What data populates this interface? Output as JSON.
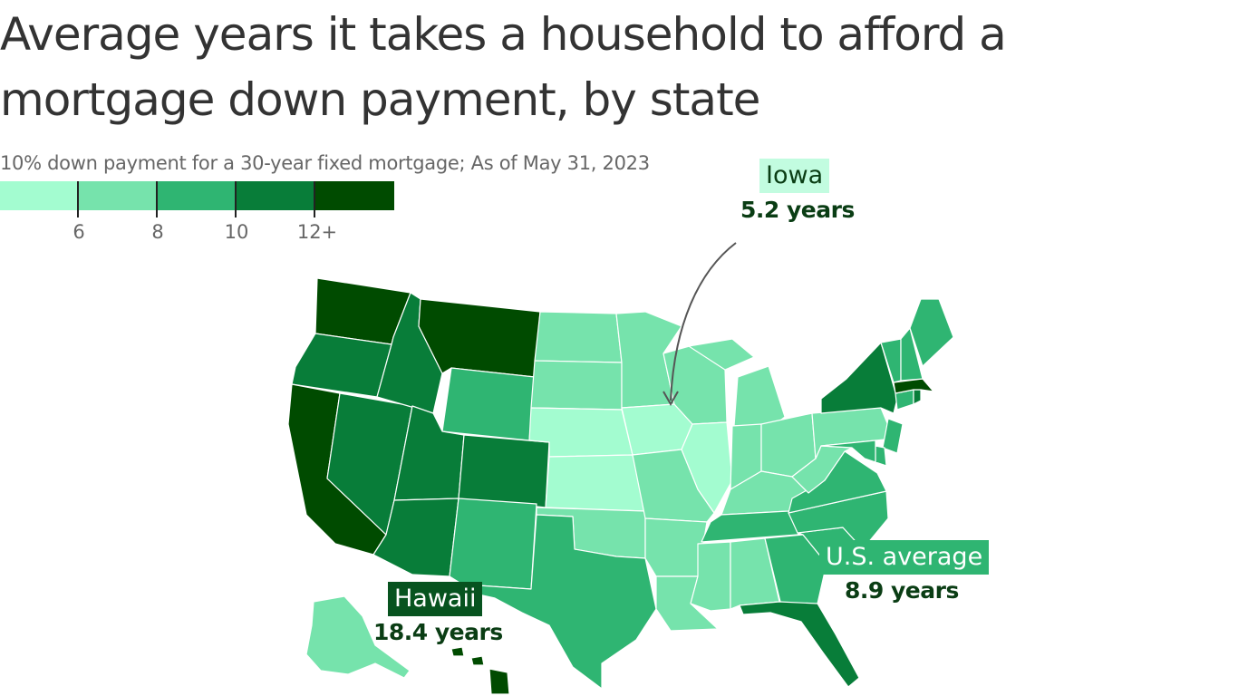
{
  "title": "Average years it takes a household to afford a mortgage down payment, by state",
  "subtitle": "10% down payment for a 30-year fixed mortgage; As of May 31, 2023",
  "legend": {
    "colors": [
      "#a3fcd0",
      "#76e3ac",
      "#2fb572",
      "#087d39",
      "#004b00"
    ],
    "tick_labels": [
      "6",
      "8",
      "10",
      "12+"
    ]
  },
  "callouts": {
    "iowa": {
      "name": "Iowa",
      "value": "5.2 years"
    },
    "hawaii": {
      "name": "Hawaii",
      "value": "18.4 years"
    },
    "us_average": {
      "name": "U.S. average",
      "value": "8.9 years"
    }
  },
  "map_data": {
    "bins": [
      "under 6",
      "6–8",
      "8–10",
      "10–12",
      "12+"
    ],
    "states": [
      {
        "code": "WA",
        "name": "Washington",
        "bin": 4
      },
      {
        "code": "OR",
        "name": "Oregon",
        "bin": 3
      },
      {
        "code": "CA",
        "name": "California",
        "bin": 4
      },
      {
        "code": "NV",
        "name": "Nevada",
        "bin": 3
      },
      {
        "code": "ID",
        "name": "Idaho",
        "bin": 3
      },
      {
        "code": "MT",
        "name": "Montana",
        "bin": 4
      },
      {
        "code": "WY",
        "name": "Wyoming",
        "bin": 2
      },
      {
        "code": "UT",
        "name": "Utah",
        "bin": 3
      },
      {
        "code": "AZ",
        "name": "Arizona",
        "bin": 3
      },
      {
        "code": "CO",
        "name": "Colorado",
        "bin": 3
      },
      {
        "code": "NM",
        "name": "New Mexico",
        "bin": 2
      },
      {
        "code": "ND",
        "name": "North Dakota",
        "bin": 1
      },
      {
        "code": "SD",
        "name": "South Dakota",
        "bin": 1
      },
      {
        "code": "NE",
        "name": "Nebraska",
        "bin": 0
      },
      {
        "code": "KS",
        "name": "Kansas",
        "bin": 0
      },
      {
        "code": "OK",
        "name": "Oklahoma",
        "bin": 1
      },
      {
        "code": "TX",
        "name": "Texas",
        "bin": 2
      },
      {
        "code": "MN",
        "name": "Minnesota",
        "bin": 1
      },
      {
        "code": "IA",
        "name": "Iowa",
        "bin": 0
      },
      {
        "code": "MO",
        "name": "Missouri",
        "bin": 1
      },
      {
        "code": "AR",
        "name": "Arkansas",
        "bin": 1
      },
      {
        "code": "LA",
        "name": "Louisiana",
        "bin": 1
      },
      {
        "code": "WI",
        "name": "Wisconsin",
        "bin": 1
      },
      {
        "code": "IL",
        "name": "Illinois",
        "bin": 0
      },
      {
        "code": "MI",
        "name": "Michigan",
        "bin": 1
      },
      {
        "code": "IN",
        "name": "Indiana",
        "bin": 1
      },
      {
        "code": "OH",
        "name": "Ohio",
        "bin": 1
      },
      {
        "code": "KY",
        "name": "Kentucky",
        "bin": 1
      },
      {
        "code": "TN",
        "name": "Tennessee",
        "bin": 2
      },
      {
        "code": "MS",
        "name": "Mississippi",
        "bin": 1
      },
      {
        "code": "AL",
        "name": "Alabama",
        "bin": 1
      },
      {
        "code": "GA",
        "name": "Georgia",
        "bin": 2
      },
      {
        "code": "FL",
        "name": "Florida",
        "bin": 3
      },
      {
        "code": "SC",
        "name": "South Carolina",
        "bin": 2
      },
      {
        "code": "NC",
        "name": "North Carolina",
        "bin": 2
      },
      {
        "code": "VA",
        "name": "Virginia",
        "bin": 2
      },
      {
        "code": "WV",
        "name": "West Virginia",
        "bin": 1
      },
      {
        "code": "PA",
        "name": "Pennsylvania",
        "bin": 1
      },
      {
        "code": "NY",
        "name": "New York",
        "bin": 3
      },
      {
        "code": "NJ",
        "name": "New Jersey",
        "bin": 2
      },
      {
        "code": "DE",
        "name": "Delaware",
        "bin": 2
      },
      {
        "code": "MD",
        "name": "Maryland",
        "bin": 2
      },
      {
        "code": "CT",
        "name": "Connecticut",
        "bin": 2
      },
      {
        "code": "RI",
        "name": "Rhode Island",
        "bin": 3
      },
      {
        "code": "MA",
        "name": "Massachusetts",
        "bin": 4
      },
      {
        "code": "VT",
        "name": "Vermont",
        "bin": 2
      },
      {
        "code": "NH",
        "name": "New Hampshire",
        "bin": 2
      },
      {
        "code": "ME",
        "name": "Maine",
        "bin": 2
      },
      {
        "code": "AK",
        "name": "Alaska",
        "bin": 1
      },
      {
        "code": "HI",
        "name": "Hawaii",
        "bin": 4
      }
    ]
  }
}
